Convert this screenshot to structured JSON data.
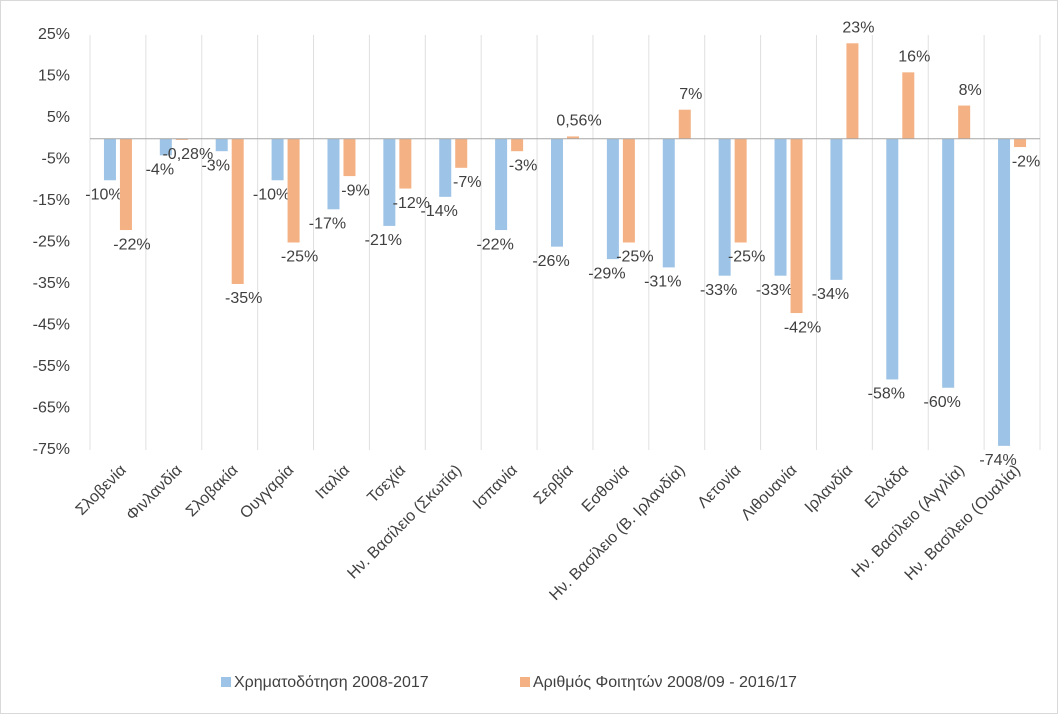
{
  "chart_data": {
    "type": "bar",
    "categories": [
      "Σλοβενία",
      "Φινλανδία",
      "Σλοβακία",
      "Ουγγαρία",
      "Ιταλία",
      "Τσεχία",
      "Ην. Βασίλειο (Σκωτία)",
      "Ισπανία",
      "Σερβία",
      "Εσθονία",
      "Ην. Βασίλειο (Β. Ιρλανδία)",
      "Λετονία",
      "Λιθουανία",
      "Ιρλανδία",
      "Ελλάδα",
      "Ην. Βασίλειο (Αγγλία)",
      "Ην. Βασίλειο (Ουαλία)"
    ],
    "series": [
      {
        "name": "Χρηματοδότηση 2008-2017",
        "color": "#9dc3e6",
        "values": [
          -10,
          -4,
          -3,
          -10,
          -17,
          -21,
          -14,
          -22,
          -26,
          -29,
          -31,
          -33,
          -33,
          -34,
          -58,
          -60,
          -74
        ],
        "value_labels": [
          "-10%",
          "-4%",
          "-3%",
          "-10%",
          "-17%",
          "-21%",
          "-14%",
          "-22%",
          "-26%",
          "-29%",
          "-31%",
          "-33%",
          "-33%",
          "-34%",
          "-58%",
          "-60%",
          "-74%"
        ]
      },
      {
        "name": "Αριθμός Φοιτητών 2008/09 - 2016/17",
        "color": "#f4b183",
        "values": [
          -22,
          -0.28,
          -35,
          -25,
          -9,
          -12,
          -7,
          -3,
          0.56,
          -25,
          7,
          -25,
          -42,
          23,
          16,
          8,
          -2
        ],
        "value_labels": [
          "-22%",
          "-0,28%",
          "-35%",
          "-25%",
          "-9%",
          "-12%",
          "-7%",
          "-3%",
          "0,56%",
          "-25%",
          "7%",
          "-25%",
          "-42%",
          "23%",
          "16%",
          "8%",
          "-2%"
        ]
      }
    ],
    "ylim": [
      -75,
      25
    ],
    "yticks": [
      {
        "value": -75,
        "label": "-75%"
      },
      {
        "value": -65,
        "label": "-65%"
      },
      {
        "value": -55,
        "label": "-55%"
      },
      {
        "value": -45,
        "label": "-45%"
      },
      {
        "value": -35,
        "label": "-35%"
      },
      {
        "value": -25,
        "label": "-25%"
      },
      {
        "value": -15,
        "label": "-15%"
      },
      {
        "value": -5,
        "label": "-5%"
      },
      {
        "value": 5,
        "label": "5%"
      },
      {
        "value": 15,
        "label": "15%"
      },
      {
        "value": 25,
        "label": "25%"
      }
    ],
    "grid": false,
    "legend": "bottom"
  }
}
